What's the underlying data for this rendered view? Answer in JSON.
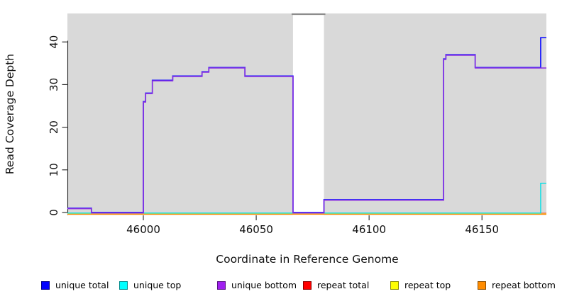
{
  "chart_data": {
    "type": "line",
    "subtype": "step",
    "title": "",
    "xlabel": "Coordinate in Reference Genome",
    "ylabel": "Read Coverage Depth",
    "x_ticks": [
      "46000",
      "46050",
      "46100",
      "46150"
    ],
    "x_tick_values": [
      46000,
      46050,
      46100,
      46150
    ],
    "y_ticks": [
      "0",
      "10",
      "20",
      "30",
      "40"
    ],
    "y_tick_values": [
      0,
      10,
      20,
      30,
      40
    ],
    "xlim": [
      45966,
      46179
    ],
    "ylim": [
      0,
      46.7
    ],
    "grid": false,
    "plot_bg_color": "#d9d9d9",
    "figure_bg_color": "#ffffff",
    "masked_region": {
      "x_start": 46066.3,
      "x_end": 46080,
      "fill": "#ffffff",
      "top_line_color": "#8c8c8c"
    },
    "series": [
      {
        "name": "unique total",
        "color": "#0000ff",
        "steps": [
          [
            45966,
            1
          ],
          [
            45977,
            0
          ],
          [
            46000,
            26
          ],
          [
            46001,
            28
          ],
          [
            46004,
            31
          ],
          [
            46013,
            32
          ],
          [
            46026,
            33
          ],
          [
            46029,
            34
          ],
          [
            46045,
            32
          ],
          [
            46066.3,
            0
          ],
          [
            46080,
            3
          ],
          [
            46133,
            36
          ],
          [
            46134,
            37
          ],
          [
            46147,
            34
          ],
          [
            46176,
            41
          ]
        ]
      },
      {
        "name": "unique top",
        "color": "#00ffff",
        "steps": [
          [
            45966,
            0
          ],
          [
            46176,
            7
          ]
        ]
      },
      {
        "name": "unique bottom",
        "color": "#a020f0",
        "steps": [
          [
            45966,
            1
          ],
          [
            45977,
            0
          ],
          [
            46000,
            26
          ],
          [
            46001,
            28
          ],
          [
            46004,
            31
          ],
          [
            46013,
            32
          ],
          [
            46026,
            33
          ],
          [
            46029,
            34
          ],
          [
            46045,
            32
          ],
          [
            46066.3,
            0
          ],
          [
            46080,
            3
          ],
          [
            46133,
            36
          ],
          [
            46134,
            37
          ],
          [
            46147,
            34
          ]
        ]
      },
      {
        "name": "repeat total",
        "color": "#ff0000",
        "steps": [
          [
            45966,
            0
          ]
        ]
      },
      {
        "name": "repeat top",
        "color": "#ffff00",
        "steps": [
          [
            45966,
            0
          ]
        ]
      },
      {
        "name": "repeat bottom",
        "color": "#ff8c00",
        "steps": [
          [
            45966,
            0
          ]
        ]
      }
    ],
    "legend": [
      {
        "label": "unique total",
        "color": "#0000ff"
      },
      {
        "label": "unique top",
        "color": "#00ffff"
      },
      {
        "label": "unique bottom",
        "color": "#a020f0"
      },
      {
        "label": "repeat total",
        "color": "#ff0000"
      },
      {
        "label": "repeat top",
        "color": "#ffff00"
      },
      {
        "label": "repeat bottom",
        "color": "#ff8c00"
      }
    ],
    "legend_position": "bottom"
  }
}
